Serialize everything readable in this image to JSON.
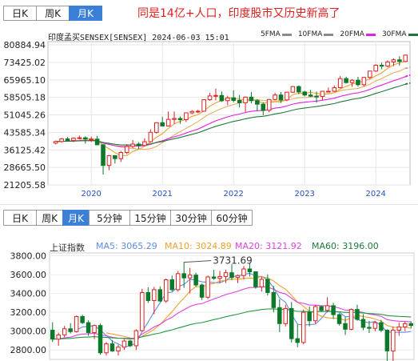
{
  "headline": "同是14亿+人口，印度股市又历史新高了",
  "chart1": {
    "tabs": [
      {
        "label": "日K",
        "active": false
      },
      {
        "label": "周K",
        "active": false
      },
      {
        "label": "月K",
        "active": true
      }
    ],
    "title": "印度孟买SENSEX[SENSEX] 2024-06-03 15:01",
    "legend": [
      {
        "label": "5FMA",
        "color": "#8a8a8a"
      },
      {
        "label": "10FMA",
        "color": "#8a8a8a"
      },
      {
        "label": "20FMA",
        "color": "#e020e0"
      },
      {
        "label": "30FMA",
        "color": "#1f7a3a"
      }
    ]
  },
  "chart2": {
    "tabs": [
      {
        "label": "日K",
        "active": false
      },
      {
        "label": "周K",
        "active": false
      },
      {
        "label": "月K",
        "active": true
      },
      {
        "label": "5分钟",
        "active": false
      },
      {
        "label": "15分钟",
        "active": false
      },
      {
        "label": "30分钟",
        "active": false
      },
      {
        "label": "60分钟",
        "active": false
      }
    ],
    "legend": [
      {
        "label": "上证指数",
        "color": "#333333"
      },
      {
        "label": "MA5: 3065.29",
        "color": "#5b8de8"
      },
      {
        "label": "MA10: 3024.89",
        "color": "#f0a030"
      },
      {
        "label": "MA20: 3121.92",
        "color": "#e040e0"
      },
      {
        "label": "MA60: 3196.00",
        "color": "#1f7a3a"
      }
    ],
    "annotation": "3731.69"
  },
  "chart_data": [
    {
      "type": "candlestick",
      "title": "印度孟买SENSEX[SENSEX] 2024-06-03 15:01",
      "y_ticks": [
        "80884.94",
        "73425.02",
        "65965.10",
        "58505.18",
        "51045.26",
        "43585.34",
        "36125.42",
        "28665.50",
        "21205.58"
      ],
      "ylim": [
        21205.58,
        80884.94
      ],
      "x_ticks": [
        "2020",
        "2021",
        "2022",
        "2023",
        "2024"
      ],
      "x_tick_index": [
        6,
        18,
        30,
        42,
        54
      ],
      "candles": [
        [
          39000,
          40100,
          38500,
          39700
        ],
        [
          39700,
          41200,
          39200,
          40800
        ],
        [
          40800,
          41600,
          39900,
          40100
        ],
        [
          40100,
          41500,
          39400,
          41100
        ],
        [
          41100,
          42200,
          40700,
          41300
        ],
        [
          41300,
          41900,
          38800,
          40700
        ],
        [
          40700,
          41800,
          39500,
          40700
        ],
        [
          40700,
          42000,
          38200,
          38300
        ],
        [
          38300,
          38500,
          25600,
          29500
        ],
        [
          29500,
          34000,
          27500,
          33700
        ],
        [
          33700,
          33900,
          30300,
          32400
        ],
        [
          32400,
          35700,
          31000,
          35000
        ],
        [
          35000,
          38600,
          34300,
          37600
        ],
        [
          37600,
          40300,
          36800,
          38600
        ],
        [
          38600,
          39400,
          36500,
          38000
        ],
        [
          38000,
          41100,
          37600,
          39600
        ],
        [
          39600,
          44800,
          39200,
          43600
        ],
        [
          43600,
          47900,
          43000,
          47700
        ],
        [
          47700,
          50200,
          46200,
          46300
        ],
        [
          46300,
          52500,
          46200,
          49100
        ],
        [
          49100,
          52500,
          47200,
          49500
        ],
        [
          49500,
          50400,
          47200,
          49000
        ],
        [
          49000,
          52000,
          48000,
          51900
        ],
        [
          51900,
          53100,
          51300,
          52500
        ],
        [
          52500,
          53200,
          51800,
          52600
        ],
        [
          52600,
          57600,
          52500,
          57500
        ],
        [
          57500,
          60400,
          57000,
          59100
        ],
        [
          59100,
          62200,
          57200,
          59300
        ],
        [
          59300,
          61000,
          56600,
          57100
        ],
        [
          57100,
          59200,
          55200,
          58300
        ],
        [
          58300,
          61500,
          56400,
          57200
        ],
        [
          57200,
          59500,
          54200,
          56200
        ],
        [
          56200,
          58900,
          52300,
          58600
        ],
        [
          58600,
          60800,
          56000,
          57100
        ],
        [
          57100,
          57700,
          52600,
          55600
        ],
        [
          55600,
          56400,
          50900,
          53000
        ],
        [
          53000,
          57800,
          52100,
          57600
        ],
        [
          57600,
          60400,
          57300,
          59500
        ],
        [
          59500,
          60800,
          56100,
          57400
        ],
        [
          57400,
          60800,
          56900,
          60700
        ],
        [
          60700,
          63300,
          60400,
          63100
        ],
        [
          63100,
          63600,
          59800,
          60800
        ],
        [
          60800,
          61300,
          58900,
          59500
        ],
        [
          59500,
          61700,
          58700,
          59000
        ],
        [
          59000,
          61000,
          56200,
          58900
        ],
        [
          58900,
          61300,
          57200,
          61100
        ],
        [
          61100,
          62700,
          60700,
          61100
        ],
        [
          61100,
          63600,
          60800,
          62600
        ],
        [
          62600,
          67600,
          62300,
          66500
        ],
        [
          66500,
          67300,
          64300,
          64800
        ],
        [
          64800,
          66300,
          63000,
          65800
        ],
        [
          65800,
          67300,
          63100,
          63900
        ],
        [
          63900,
          67200,
          63100,
          67000
        ],
        [
          67000,
          69800,
          66300,
          69700
        ],
        [
          69700,
          72600,
          69400,
          72200
        ],
        [
          72200,
          73300,
          70500,
          71800
        ],
        [
          71800,
          74300,
          71300,
          73600
        ],
        [
          73600,
          75100,
          71800,
          74500
        ],
        [
          74500,
          76000,
          72000,
          73800
        ],
        [
          73800,
          76700,
          73500,
          76500
        ]
      ]
    },
    {
      "type": "candlestick",
      "series_name": "上证指数",
      "y_ticks": [
        "3800.00",
        "3600.00",
        "3400.00",
        "3200.00",
        "3000.00",
        "2800.00"
      ],
      "ylim": [
        2700,
        3830
      ],
      "annotation": {
        "label": "3731.69",
        "value": 3731.69
      },
      "moving_averages": {
        "MA5": 3065.29,
        "MA10": 3024.89,
        "MA20": 3121.92,
        "MA60": 3196.0
      },
      "candles": [
        [
          3010,
          3095,
          2885,
          2915
        ],
        [
          2915,
          2985,
          2845,
          2960
        ],
        [
          2960,
          3055,
          2935,
          3025
        ],
        [
          3025,
          3085,
          2975,
          2995
        ],
        [
          2995,
          3165,
          2985,
          3155
        ],
        [
          3155,
          3175,
          3075,
          3090
        ],
        [
          3090,
          3115,
          2950,
          2985
        ],
        [
          2985,
          3070,
          2915,
          3060
        ],
        [
          3060,
          3080,
          2750,
          2770
        ],
        [
          2770,
          2885,
          2740,
          2865
        ],
        [
          2865,
          2905,
          2780,
          2790
        ],
        [
          2790,
          2855,
          2740,
          2830
        ],
        [
          2830,
          2915,
          2800,
          2895
        ],
        [
          2895,
          2905,
          2830,
          2845
        ],
        [
          2845,
          3020,
          2800,
          3005
        ],
        [
          3005,
          3450,
          2995,
          3410
        ],
        [
          3410,
          3465,
          3300,
          3325
        ],
        [
          3325,
          3470,
          3180,
          3440
        ],
        [
          3440,
          3475,
          3310,
          3320
        ],
        [
          3320,
          3560,
          3300,
          3545
        ],
        [
          3545,
          3590,
          3420,
          3440
        ],
        [
          3440,
          3640,
          3420,
          3610
        ],
        [
          3610,
          3735,
          3460,
          3565
        ],
        [
          3565,
          3670,
          3400,
          3595
        ],
        [
          3595,
          3620,
          3470,
          3490
        ],
        [
          3490,
          3505,
          3330,
          3360
        ],
        [
          3360,
          3590,
          3340,
          3575
        ],
        [
          3575,
          3650,
          3545,
          3560
        ],
        [
          3560,
          3640,
          3510,
          3580
        ],
        [
          3580,
          3650,
          3510,
          3620
        ],
        [
          3620,
          3710,
          3540,
          3570
        ],
        [
          3570,
          3600,
          3510,
          3590
        ],
        [
          3590,
          3690,
          3550,
          3660
        ],
        [
          3660,
          3720,
          3580,
          3630
        ],
        [
          3630,
          3635,
          3450,
          3470
        ],
        [
          3470,
          3580,
          3420,
          3550
        ],
        [
          3550,
          3600,
          3380,
          3410
        ],
        [
          3410,
          3480,
          3200,
          3250
        ],
        [
          3250,
          3340,
          2990,
          3080
        ],
        [
          3080,
          3280,
          3050,
          3240
        ],
        [
          3240,
          3310,
          2880,
          2920
        ],
        [
          2920,
          3070,
          2830,
          2880
        ],
        [
          2880,
          3230,
          2860,
          3200
        ],
        [
          3200,
          3260,
          3050,
          3110
        ],
        [
          3110,
          3280,
          3080,
          3260
        ],
        [
          3260,
          3270,
          3210,
          3220
        ],
        [
          3220,
          3360,
          3200,
          3270
        ],
        [
          3270,
          3300,
          3130,
          3175
        ],
        [
          3175,
          3190,
          3060,
          3080
        ],
        [
          3080,
          3150,
          2960,
          3020
        ],
        [
          3020,
          3240,
          3010,
          3230
        ],
        [
          3230,
          3280,
          3110,
          3125
        ],
        [
          3125,
          3180,
          3010,
          3040
        ],
        [
          3040,
          3110,
          2980,
          3030
        ],
        [
          3030,
          3110,
          3000,
          3090
        ],
        [
          3090,
          3120,
          2990,
          3010
        ],
        [
          3010,
          3020,
          2640,
          2790
        ],
        [
          2790,
          3050,
          2660,
          3010
        ],
        [
          3010,
          3090,
          2950,
          3045
        ],
        [
          3045,
          3100,
          3000,
          3080
        ],
        [
          3080,
          3105,
          3030,
          3060
        ]
      ]
    }
  ]
}
